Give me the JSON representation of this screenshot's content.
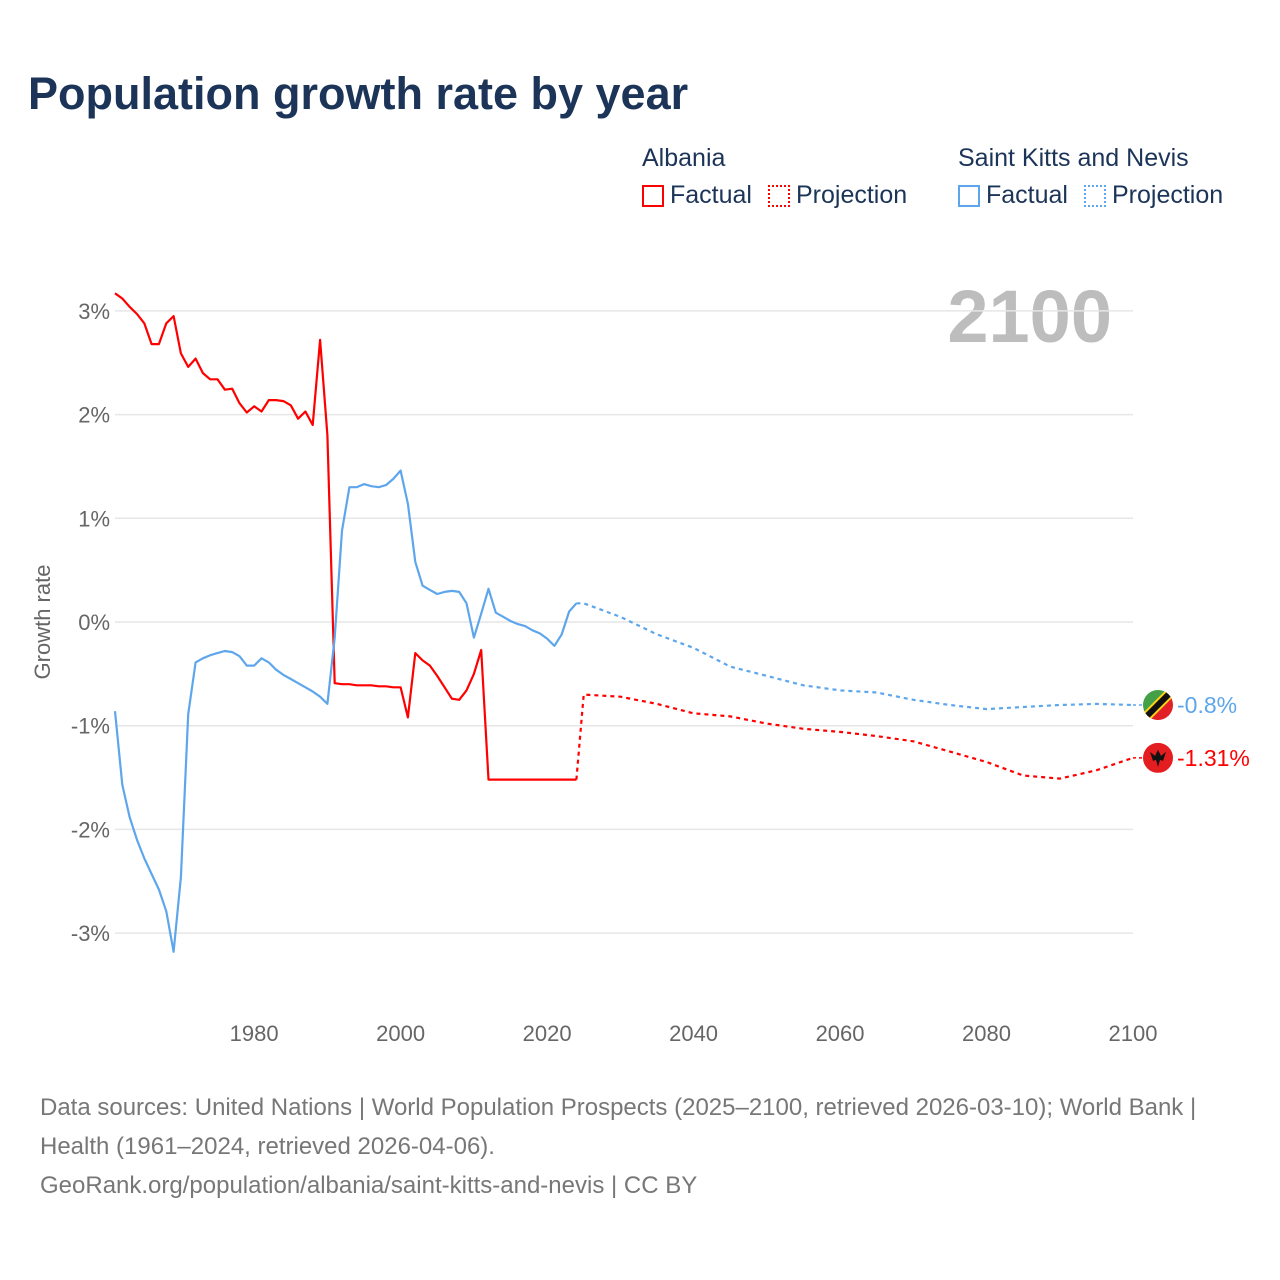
{
  "title": "Population growth rate by year",
  "legend": {
    "groups": [
      {
        "name": "Albania",
        "factual": "Factual",
        "projection": "Projection",
        "color": "#ff0000"
      },
      {
        "name": "Saint Kitts and Nevis",
        "factual": "Factual",
        "projection": "Projection",
        "color": "#5ea6ec"
      }
    ]
  },
  "year_display": "2100",
  "footer": {
    "sources": "Data sources: United Nations | World Population Prospects (2025–2100, retrieved 2026-03-10); World Bank | Health (1961–2024, retrieved 2026-04-06).",
    "url": "GeoRank.org/population/albania/saint-kitts-and-nevis | CC BY"
  },
  "chart_data": {
    "type": "line",
    "title": "Population growth rate by year",
    "xlabel": "",
    "ylabel": "Growth rate",
    "xlim": [
      1961,
      2100
    ],
    "ylim": [
      -3.5,
      3.5
    ],
    "x_ticks": [
      1980,
      2000,
      2020,
      2040,
      2060,
      2080,
      2100
    ],
    "x_tick_labels": [
      "1980",
      "2000",
      "2020",
      "2040",
      "2060",
      "2080",
      "2100"
    ],
    "y_ticks": [
      3,
      2,
      1,
      0,
      -1,
      -2,
      -3
    ],
    "y_tick_labels": [
      "3%",
      "2%",
      "1%",
      "0%",
      "-1%",
      "-2%",
      "-3%"
    ],
    "grid": true,
    "legend_position": "top-right",
    "series": [
      {
        "name": "Albania",
        "color": "#ff0000",
        "end_label": "-1.31%",
        "factual": {
          "x": [
            1961,
            1962,
            1963,
            1964,
            1965,
            1966,
            1967,
            1968,
            1969,
            1970,
            1971,
            1972,
            1973,
            1974,
            1975,
            1976,
            1977,
            1978,
            1979,
            1980,
            1981,
            1982,
            1983,
            1984,
            1985,
            1986,
            1987,
            1988,
            1989,
            1990,
            1991,
            1992,
            1993,
            1994,
            1995,
            1996,
            1997,
            1998,
            1999,
            2000,
            2001,
            2002,
            2003,
            2004,
            2005,
            2006,
            2007,
            2008,
            2009,
            2010,
            2011,
            2012,
            2013,
            2014,
            2015,
            2016,
            2017,
            2018,
            2019,
            2020,
            2021,
            2022,
            2023,
            2024
          ],
          "y": [
            3.17,
            3.12,
            3.04,
            2.97,
            2.88,
            2.68,
            2.68,
            2.88,
            2.95,
            2.59,
            2.46,
            2.54,
            2.4,
            2.34,
            2.34,
            2.24,
            2.25,
            2.11,
            2.02,
            2.08,
            2.03,
            2.14,
            2.14,
            2.13,
            2.09,
            1.96,
            2.03,
            1.9,
            2.72,
            1.8,
            -0.59,
            -0.6,
            -0.6,
            -0.61,
            -0.61,
            -0.61,
            -0.62,
            -0.62,
            -0.63,
            -0.63,
            -0.92,
            -0.3,
            -0.37,
            -0.42,
            -0.52,
            -0.63,
            -0.74,
            -0.75,
            -0.66,
            -0.5,
            -0.27,
            -1.52,
            -1.52,
            -1.52,
            -1.52,
            -1.52,
            -1.52,
            -1.52,
            -1.52,
            -1.52,
            -1.52,
            -1.52,
            -1.52,
            -1.52
          ]
        },
        "projection": {
          "x": [
            2024,
            2025,
            2030,
            2035,
            2040,
            2045,
            2050,
            2055,
            2060,
            2065,
            2070,
            2075,
            2080,
            2085,
            2090,
            2095,
            2100
          ],
          "y": [
            -1.52,
            -0.7,
            -0.72,
            -0.79,
            -0.88,
            -0.91,
            -0.98,
            -1.03,
            -1.06,
            -1.1,
            -1.15,
            -1.25,
            -1.35,
            -1.48,
            -1.51,
            -1.43,
            -1.31
          ]
        }
      },
      {
        "name": "Saint Kitts and Nevis",
        "color": "#5ea6ec",
        "end_label": "-0.8%",
        "factual": {
          "x": [
            1961,
            1962,
            1963,
            1964,
            1965,
            1966,
            1967,
            1968,
            1969,
            1970,
            1971,
            1972,
            1973,
            1974,
            1975,
            1976,
            1977,
            1978,
            1979,
            1980,
            1981,
            1982,
            1983,
            1984,
            1985,
            1986,
            1987,
            1988,
            1989,
            1990,
            1991,
            1992,
            1993,
            1994,
            1995,
            1996,
            1997,
            1998,
            1999,
            2000,
            2001,
            2002,
            2003,
            2004,
            2005,
            2006,
            2007,
            2008,
            2009,
            2010,
            2011,
            2012,
            2013,
            2014,
            2015,
            2016,
            2017,
            2018,
            2019,
            2020,
            2021,
            2022,
            2023,
            2024
          ],
          "y": [
            -0.86,
            -1.57,
            -1.88,
            -2.1,
            -2.28,
            -2.43,
            -2.58,
            -2.79,
            -3.18,
            -2.46,
            -0.89,
            -0.39,
            -0.35,
            -0.32,
            -0.3,
            -0.28,
            -0.29,
            -0.33,
            -0.42,
            -0.42,
            -0.35,
            -0.39,
            -0.46,
            -0.51,
            -0.55,
            -0.59,
            -0.63,
            -0.67,
            -0.72,
            -0.79,
            -0.15,
            0.88,
            1.3,
            1.3,
            1.33,
            1.31,
            1.3,
            1.32,
            1.38,
            1.46,
            1.14,
            0.58,
            0.35,
            0.31,
            0.27,
            0.29,
            0.3,
            0.29,
            0.18,
            -0.15,
            0.08,
            0.32,
            0.09,
            0.05,
            0.01,
            -0.02,
            -0.04,
            -0.08,
            -0.11,
            -0.16,
            -0.23,
            -0.12,
            0.1,
            0.18
          ]
        },
        "projection": {
          "x": [
            2024,
            2025,
            2030,
            2035,
            2040,
            2045,
            2050,
            2055,
            2060,
            2065,
            2070,
            2075,
            2080,
            2085,
            2090,
            2095,
            2100
          ],
          "y": [
            0.18,
            0.18,
            0.05,
            -0.12,
            -0.25,
            -0.43,
            -0.52,
            -0.61,
            -0.66,
            -0.68,
            -0.75,
            -0.8,
            -0.84,
            -0.82,
            -0.8,
            -0.79,
            -0.8
          ]
        }
      }
    ]
  }
}
